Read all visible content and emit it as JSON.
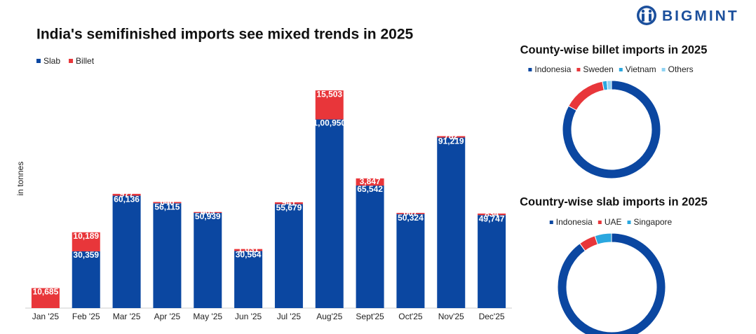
{
  "logo": "BIGMINT",
  "chart_data": [
    {
      "type": "bar",
      "stacked": true,
      "title": "India's semifinished imports see mixed trends in 2025",
      "y_label": "in tonnes",
      "categories": [
        "Jan '25",
        "Feb '25",
        "Mar '25",
        "Apr '25",
        "May '25",
        "Jun '25",
        "Jul '25",
        "Aug'25",
        "Sept'25",
        "Oct'25",
        "Nov'25",
        "Dec'25"
      ],
      "series": [
        {
          "name": "Slab",
          "color": "#0b47a1",
          "values": [
            null,
            30359,
            60136,
            56115,
            50939,
            30564,
            55679,
            100950,
            65542,
            50324,
            91219,
            49747
          ],
          "value_labels": [
            null,
            "30,359",
            "60,136",
            "56,115",
            "50,939",
            "30,564",
            "55,679",
            "1,00,950",
            "65,542",
            "50,324",
            "91,219",
            "49,747"
          ]
        },
        {
          "name": "Billet",
          "color": "#e8363a",
          "values": [
            10685,
            10189,
            977,
            646,
            469,
            1031,
            941,
            15503,
            3847,
            607,
            782,
            834
          ],
          "value_labels": [
            "10,685",
            "10,189",
            "977",
            "646",
            "469",
            "1,031",
            "941",
            "15,503",
            "3,847",
            "607",
            "782",
            "834"
          ]
        }
      ],
      "ylim": [
        0,
        118000
      ]
    },
    {
      "type": "pie",
      "donut": true,
      "title": "County-wise billet imports in 2025",
      "categories": [
        "Indonesia",
        "Sweden",
        "Vietnam",
        "Others"
      ],
      "values": [
        83,
        14,
        1.5,
        1.5
      ],
      "colors": [
        "#0b47a1",
        "#e8363a",
        "#2aa7df",
        "#8fd3f4"
      ]
    },
    {
      "type": "pie",
      "donut": true,
      "title": "Country-wise slab imports in 2025",
      "categories": [
        "Indonesia",
        "UAE",
        "Singapore"
      ],
      "values": [
        90,
        5,
        5
      ],
      "colors": [
        "#0b47a1",
        "#e8363a",
        "#2aa7df"
      ]
    }
  ]
}
